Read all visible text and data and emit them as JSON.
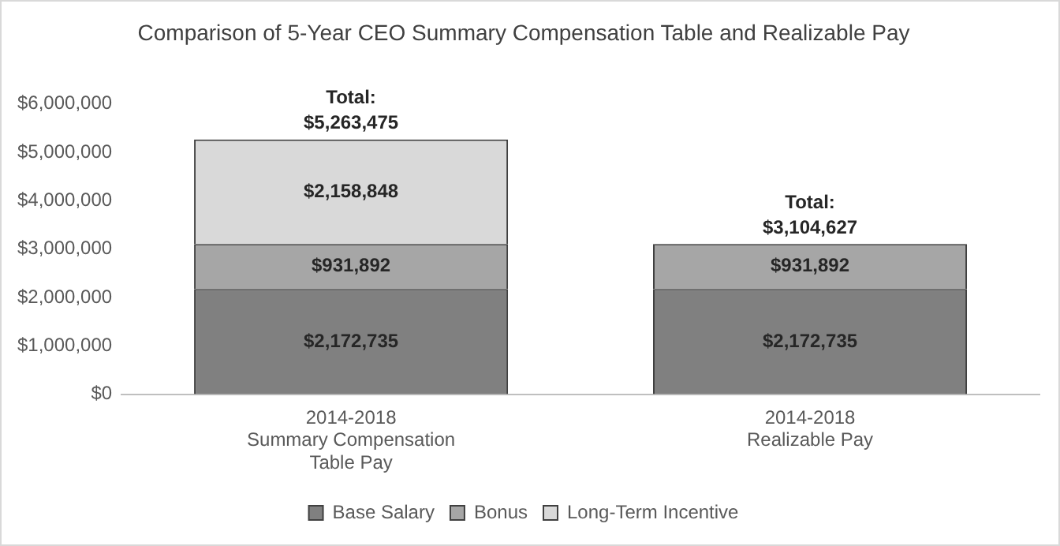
{
  "chart_data": {
    "type": "bar",
    "title": "Comparison of 5-Year CEO Summary Compensation Table and Realizable Pay",
    "categories": [
      "2014-2018\nSummary Compensation\nTable Pay",
      "2014-2018\nRealizable Pay"
    ],
    "stacked": true,
    "legend": "bottom",
    "ylim": [
      0,
      6000000
    ],
    "yticks": [
      {
        "value": 0,
        "label": "$0"
      },
      {
        "value": 1000000,
        "label": "$1,000,000"
      },
      {
        "value": 2000000,
        "label": "$2,000,000"
      },
      {
        "value": 3000000,
        "label": "$3,000,000"
      },
      {
        "value": 4000000,
        "label": "$4,000,000"
      },
      {
        "value": 5000000,
        "label": "$5,000,000"
      },
      {
        "value": 6000000,
        "label": "$6,000,000"
      }
    ],
    "series": [
      {
        "name": "Base Salary",
        "color": "#808080",
        "values": [
          2172735,
          2172735
        ],
        "value_labels": [
          "$2,172,735",
          "$2,172,735"
        ]
      },
      {
        "name": "Bonus",
        "color": "#a6a6a6",
        "values": [
          931892,
          931892
        ],
        "value_labels": [
          "$931,892",
          "$931,892"
        ]
      },
      {
        "name": "Long-Term Incentive",
        "color": "#d9d9d9",
        "values": [
          2158848,
          null
        ],
        "value_labels": [
          "$2,158,848",
          null
        ]
      }
    ],
    "totals": [
      "Total:\n$5,263,475",
      "Total:\n$3,104,627"
    ]
  }
}
